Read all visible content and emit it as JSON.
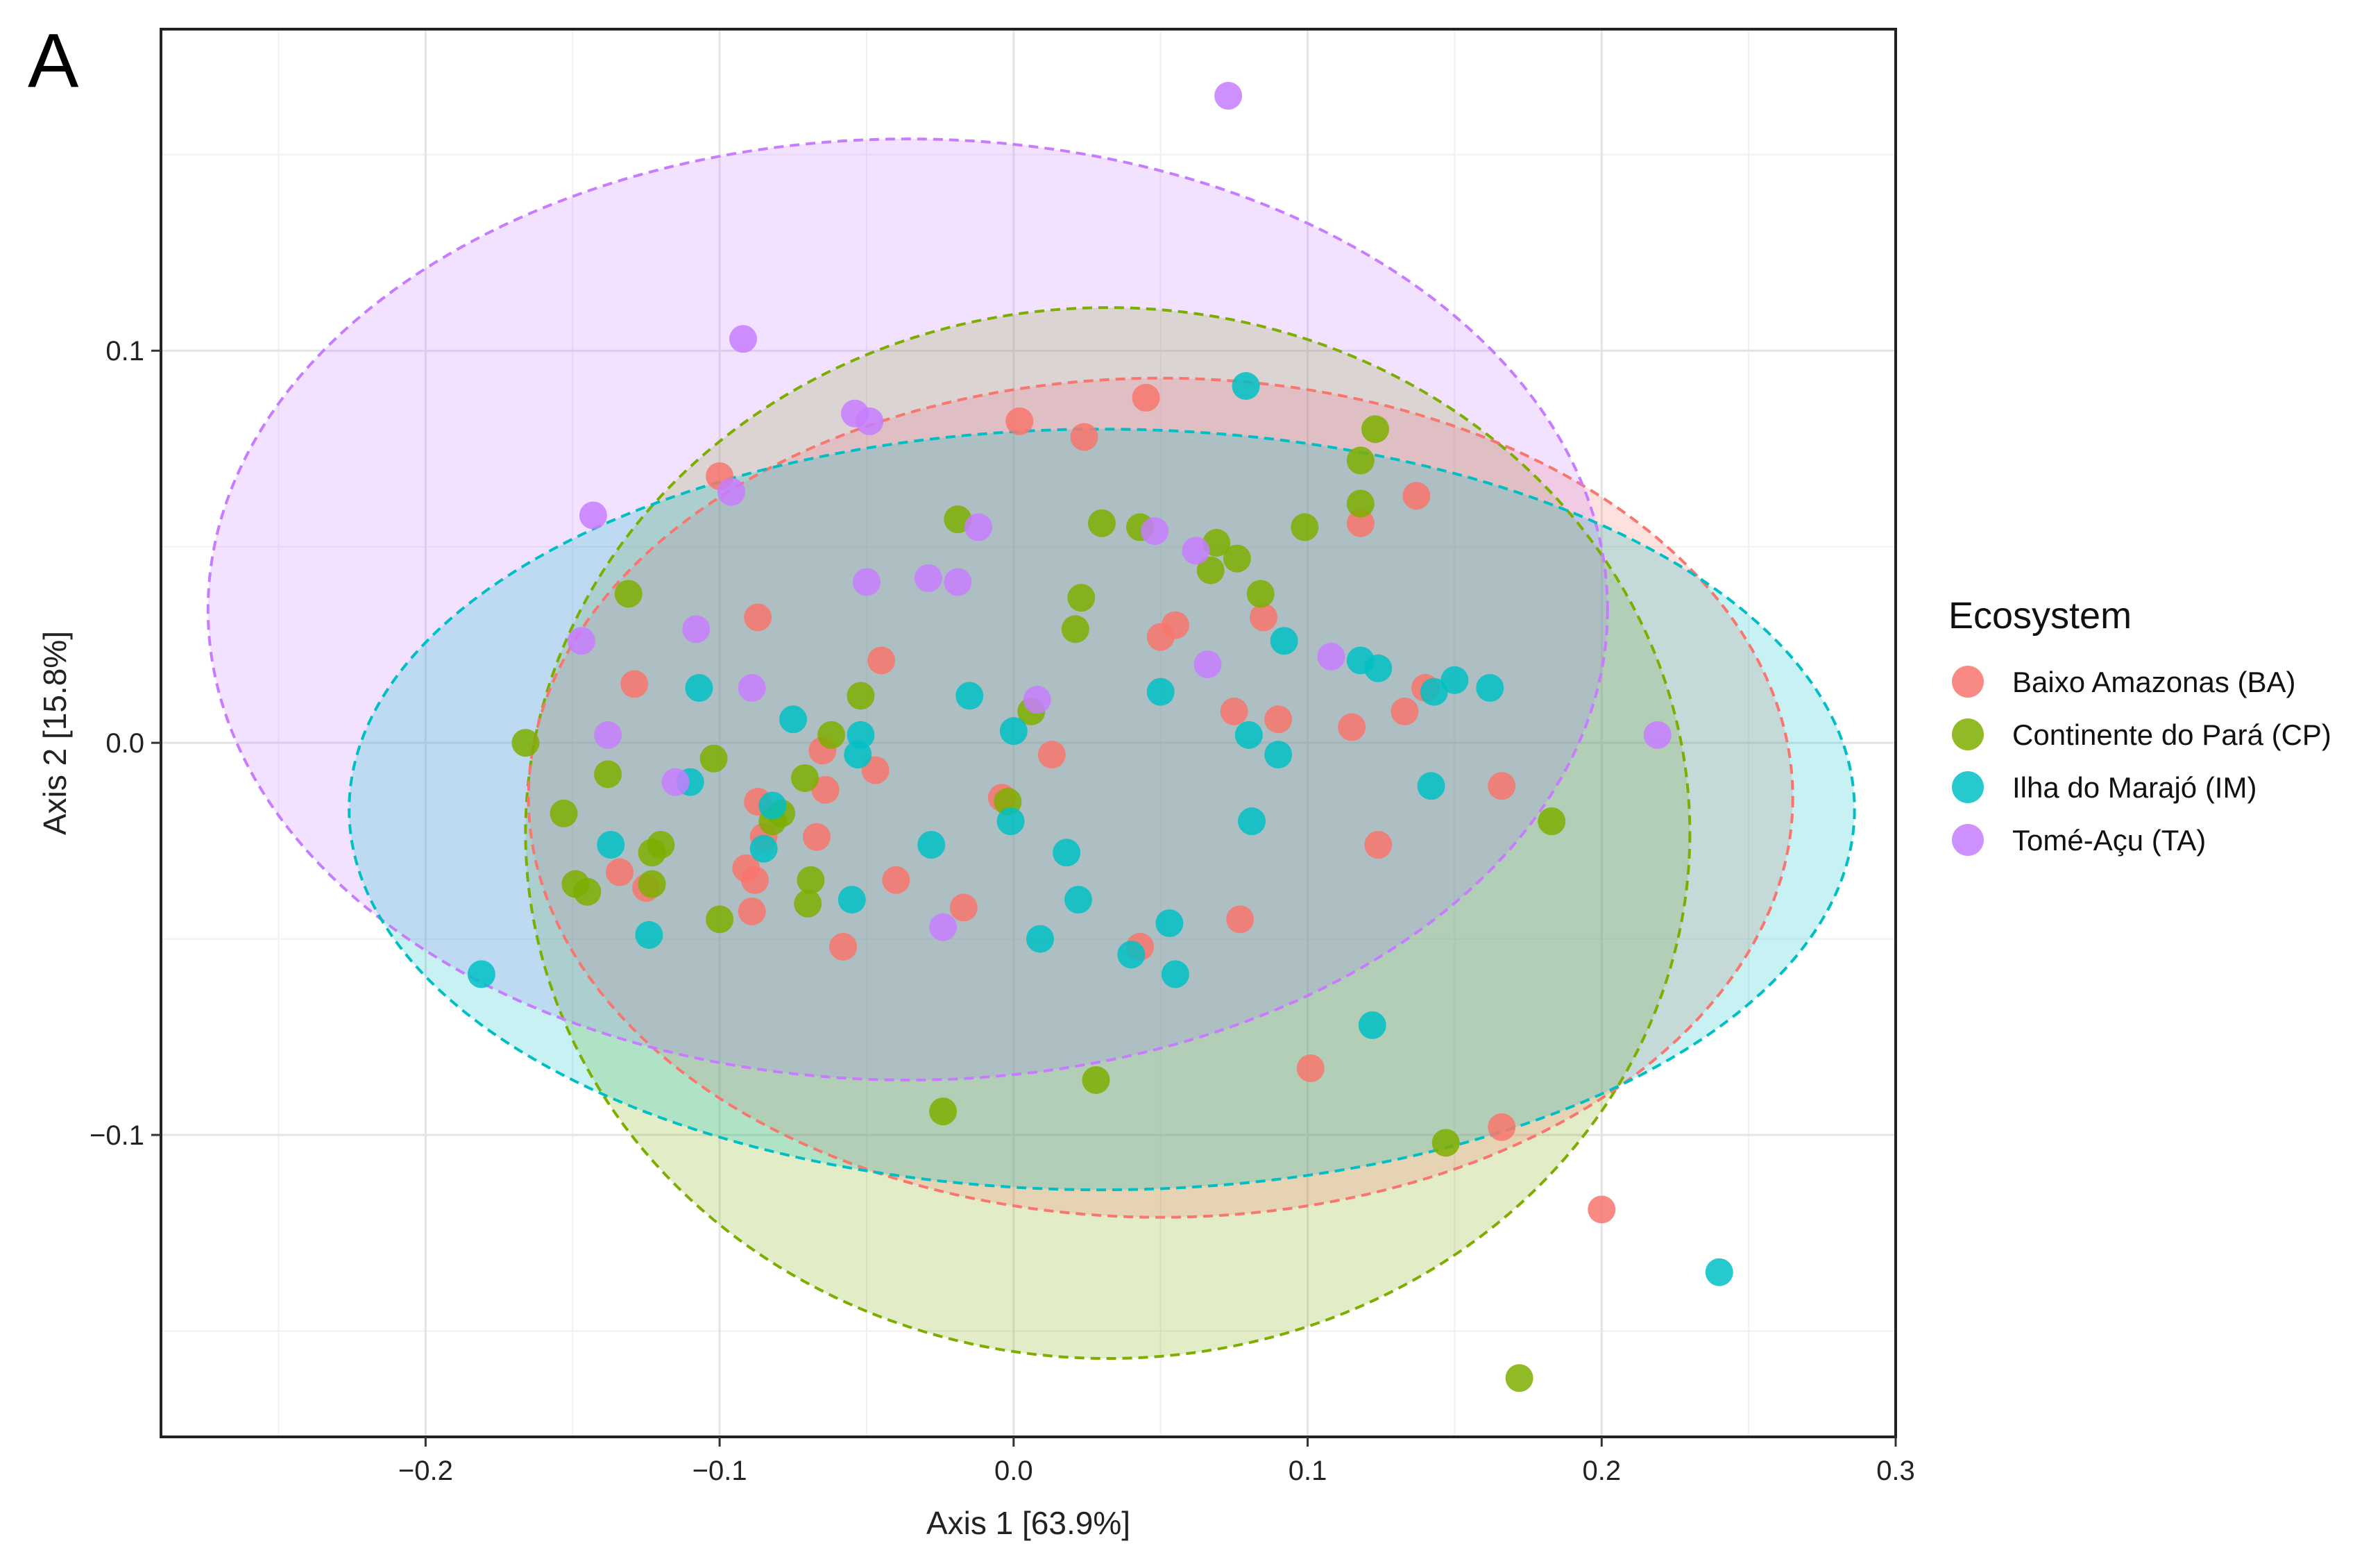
{
  "panel_label": "A",
  "chart_data": {
    "type": "scatter",
    "xlabel": "Axis 1 [63.9%]",
    "ylabel": "Axis 2 [15.8%]",
    "xlim": [
      -0.29,
      0.3
    ],
    "ylim": [
      -0.177,
      0.182
    ],
    "x_ticks": [
      -0.2,
      -0.1,
      0.0,
      0.1,
      0.2,
      0.3
    ],
    "x_tick_labels": [
      "−0.2",
      "−0.1",
      "0.0",
      "0.1",
      "0.2",
      "0.3"
    ],
    "y_ticks": [
      0.1,
      0.0,
      -0.1
    ],
    "y_tick_labels": [
      "0.1",
      "0.0",
      "−0.1"
    ],
    "grid": true,
    "legend_title": "Ecosystem",
    "legend_position": "right",
    "series": [
      {
        "name": "Baixo Amazonas (BA)",
        "color": "#F8766D",
        "ellipse": {
          "cx": 0.05,
          "cy": -0.014,
          "rx": 0.215,
          "ry": 0.107
        },
        "points": [
          [
            0.002,
            0.082
          ],
          [
            0.045,
            0.088
          ],
          [
            0.024,
            0.078
          ],
          [
            -0.1,
            0.068
          ],
          [
            0.137,
            0.063
          ],
          [
            0.118,
            0.056
          ],
          [
            -0.087,
            0.032
          ],
          [
            0.055,
            0.03
          ],
          [
            0.05,
            0.027
          ],
          [
            0.085,
            0.032
          ],
          [
            -0.045,
            0.021
          ],
          [
            -0.129,
            0.015
          ],
          [
            0.14,
            0.014
          ],
          [
            0.075,
            0.008
          ],
          [
            0.09,
            0.006
          ],
          [
            0.133,
            0.008
          ],
          [
            0.115,
            0.004
          ],
          [
            -0.065,
            -0.002
          ],
          [
            0.013,
            -0.003
          ],
          [
            -0.047,
            -0.007
          ],
          [
            -0.087,
            -0.015
          ],
          [
            -0.064,
            -0.012
          ],
          [
            0.166,
            -0.011
          ],
          [
            -0.004,
            -0.014
          ],
          [
            -0.085,
            -0.024
          ],
          [
            -0.067,
            -0.024
          ],
          [
            -0.134,
            -0.033
          ],
          [
            -0.091,
            -0.032
          ],
          [
            -0.088,
            -0.035
          ],
          [
            -0.125,
            -0.037
          ],
          [
            -0.04,
            -0.035
          ],
          [
            0.124,
            -0.026
          ],
          [
            -0.089,
            -0.043
          ],
          [
            -0.017,
            -0.042
          ],
          [
            0.077,
            -0.045
          ],
          [
            -0.058,
            -0.052
          ],
          [
            0.043,
            -0.052
          ],
          [
            0.101,
            -0.083
          ],
          [
            0.166,
            -0.098
          ],
          [
            0.2,
            -0.119
          ]
        ]
      },
      {
        "name": "Continente do Pará (CP)",
        "color": "#7CAE00",
        "ellipse": {
          "cx": 0.032,
          "cy": -0.023,
          "rx": 0.198,
          "ry": 0.134
        },
        "points": [
          [
            0.123,
            0.08
          ],
          [
            0.118,
            0.072
          ],
          [
            0.118,
            0.061
          ],
          [
            -0.019,
            0.057
          ],
          [
            0.03,
            0.056
          ],
          [
            0.043,
            0.055
          ],
          [
            0.099,
            0.055
          ],
          [
            0.069,
            0.051
          ],
          [
            0.076,
            0.047
          ],
          [
            0.067,
            0.044
          ],
          [
            -0.131,
            0.038
          ],
          [
            0.023,
            0.037
          ],
          [
            0.084,
            0.038
          ],
          [
            0.021,
            0.029
          ],
          [
            -0.052,
            0.012
          ],
          [
            -0.166,
            0.0
          ],
          [
            -0.062,
            0.002
          ],
          [
            0.006,
            0.008
          ],
          [
            -0.102,
            -0.004
          ],
          [
            -0.138,
            -0.008
          ],
          [
            -0.071,
            -0.009
          ],
          [
            -0.153,
            -0.018
          ],
          [
            -0.079,
            -0.018
          ],
          [
            -0.082,
            -0.02
          ],
          [
            -0.002,
            -0.015
          ],
          [
            -0.12,
            -0.026
          ],
          [
            -0.123,
            -0.028
          ],
          [
            -0.069,
            -0.035
          ],
          [
            -0.149,
            -0.036
          ],
          [
            -0.145,
            -0.038
          ],
          [
            -0.123,
            -0.036
          ],
          [
            -0.1,
            -0.045
          ],
          [
            -0.07,
            -0.041
          ],
          [
            0.183,
            -0.02
          ],
          [
            0.028,
            -0.086
          ],
          [
            -0.024,
            -0.094
          ],
          [
            0.147,
            -0.102
          ],
          [
            0.172,
            -0.162
          ]
        ]
      },
      {
        "name": "Ilha do Marajó (IM)",
        "color": "#00BFC4",
        "ellipse": {
          "cx": 0.03,
          "cy": -0.017,
          "rx": 0.256,
          "ry": 0.097
        },
        "points": [
          [
            0.079,
            0.091
          ],
          [
            0.092,
            0.026
          ],
          [
            0.118,
            0.021
          ],
          [
            0.124,
            0.019
          ],
          [
            0.15,
            0.016
          ],
          [
            0.143,
            0.013
          ],
          [
            0.162,
            0.014
          ],
          [
            -0.107,
            0.014
          ],
          [
            0.05,
            0.013
          ],
          [
            -0.015,
            0.012
          ],
          [
            -0.075,
            0.006
          ],
          [
            -0.052,
            0.002
          ],
          [
            0.0,
            0.003
          ],
          [
            0.08,
            0.002
          ],
          [
            0.09,
            -0.003
          ],
          [
            -0.053,
            -0.003
          ],
          [
            -0.11,
            -0.01
          ],
          [
            0.142,
            -0.011
          ],
          [
            -0.082,
            -0.016
          ],
          [
            -0.001,
            -0.02
          ],
          [
            0.081,
            -0.02
          ],
          [
            -0.137,
            -0.026
          ],
          [
            -0.085,
            -0.027
          ],
          [
            -0.028,
            -0.026
          ],
          [
            0.018,
            -0.028
          ],
          [
            -0.055,
            -0.04
          ],
          [
            0.022,
            -0.04
          ],
          [
            0.053,
            -0.046
          ],
          [
            -0.124,
            -0.049
          ],
          [
            0.009,
            -0.05
          ],
          [
            0.04,
            -0.054
          ],
          [
            0.055,
            -0.059
          ],
          [
            -0.181,
            -0.059
          ],
          [
            0.122,
            -0.072
          ],
          [
            0.24,
            -0.135
          ]
        ]
      },
      {
        "name": "Tomé-Açu (TA)",
        "color": "#C77CFF",
        "ellipse": {
          "cx": -0.036,
          "cy": 0.034,
          "rx": 0.238,
          "ry": 0.12
        },
        "points": [
          [
            0.073,
            0.165
          ],
          [
            -0.092,
            0.103
          ],
          [
            -0.054,
            0.084
          ],
          [
            -0.049,
            0.082
          ],
          [
            -0.143,
            0.058
          ],
          [
            -0.096,
            0.064
          ],
          [
            -0.012,
            0.055
          ],
          [
            0.048,
            0.054
          ],
          [
            0.062,
            0.049
          ],
          [
            -0.029,
            0.042
          ],
          [
            -0.019,
            0.041
          ],
          [
            -0.05,
            0.041
          ],
          [
            -0.108,
            0.029
          ],
          [
            -0.147,
            0.026
          ],
          [
            0.108,
            0.022
          ],
          [
            0.066,
            0.02
          ],
          [
            -0.089,
            0.014
          ],
          [
            0.008,
            0.011
          ],
          [
            -0.138,
            0.002
          ],
          [
            0.219,
            0.002
          ],
          [
            -0.115,
            -0.01
          ],
          [
            -0.024,
            -0.047
          ]
        ]
      }
    ]
  }
}
